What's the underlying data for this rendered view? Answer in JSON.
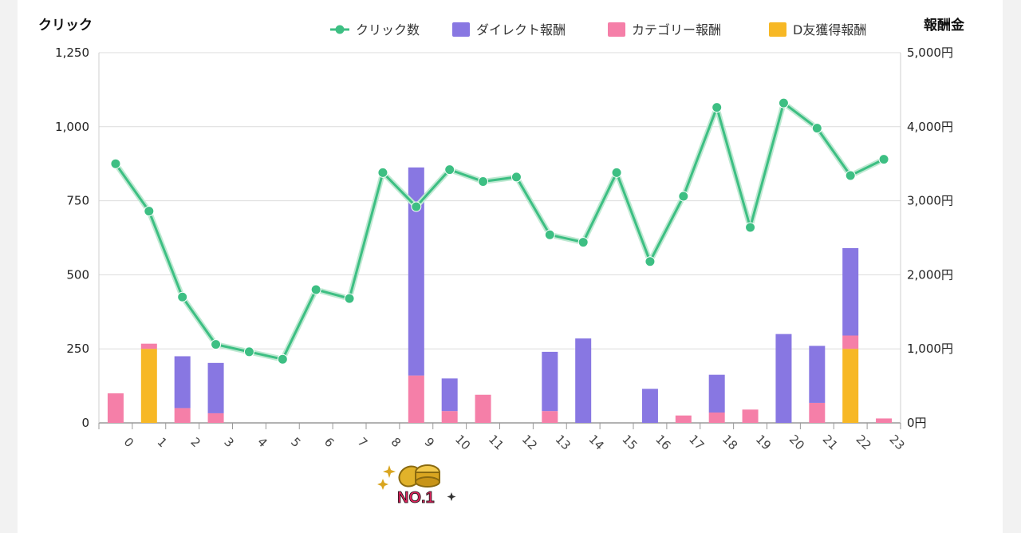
{
  "chart_data": {
    "type": "bar",
    "title": "",
    "left_axis_title": "クリック",
    "right_axis_title": "報酬金",
    "categories": [
      "0",
      "1",
      "2",
      "3",
      "4",
      "5",
      "6",
      "7",
      "8",
      "9",
      "10",
      "11",
      "12",
      "13",
      "14",
      "15",
      "16",
      "17",
      "18",
      "19",
      "20",
      "21",
      "22",
      "23"
    ],
    "left_ylim": [
      0,
      1250
    ],
    "left_ticks": [
      {
        "value": 0,
        "label": "0"
      },
      {
        "value": 250,
        "label": "250"
      },
      {
        "value": 500,
        "label": "500"
      },
      {
        "value": 750,
        "label": "750"
      },
      {
        "value": 1000,
        "label": "1,000"
      },
      {
        "value": 1250,
        "label": "1,250"
      }
    ],
    "right_ylim": [
      0,
      5000
    ],
    "right_ticks": [
      {
        "value": 0,
        "label": "0円"
      },
      {
        "value": 1000,
        "label": "1,000円"
      },
      {
        "value": 2000,
        "label": "2,000円"
      },
      {
        "value": 3000,
        "label": "3,000円"
      },
      {
        "value": 4000,
        "label": "4,000円"
      },
      {
        "value": 5000,
        "label": "5,000円"
      }
    ],
    "grid": true,
    "legend_position": "top-right",
    "line_series": {
      "name": "クリック数",
      "color": "#3dbf83",
      "axis": "left",
      "values": [
        875,
        715,
        425,
        265,
        240,
        215,
        450,
        420,
        845,
        730,
        855,
        815,
        830,
        635,
        610,
        845,
        545,
        765,
        1065,
        660,
        1080,
        995,
        835,
        890
      ]
    },
    "bar_series": [
      {
        "name": "D友獲得報酬",
        "color": "#f7b825",
        "axis": "right",
        "values": [
          0,
          1000,
          0,
          0,
          0,
          0,
          0,
          0,
          0,
          0,
          0,
          0,
          0,
          0,
          0,
          0,
          0,
          0,
          0,
          0,
          0,
          0,
          1000,
          0
        ]
      },
      {
        "name": "カテゴリー報酬",
        "color": "#f57fa8",
        "axis": "right",
        "values": [
          400,
          70,
          200,
          130,
          0,
          0,
          0,
          0,
          0,
          640,
          160,
          380,
          0,
          160,
          0,
          0,
          0,
          100,
          140,
          180,
          0,
          270,
          180,
          60
        ]
      },
      {
        "name": "ダイレクト報酬",
        "color": "#8877e2",
        "axis": "right",
        "values": [
          0,
          0,
          700,
          680,
          0,
          0,
          0,
          0,
          0,
          2810,
          440,
          0,
          0,
          800,
          1140,
          0,
          460,
          0,
          510,
          0,
          1200,
          770,
          1180,
          0
        ]
      }
    ],
    "legend_order": [
      "クリック数",
      "ダイレクト報酬",
      "カテゴリー報酬",
      "D友獲得報酬"
    ],
    "badge": {
      "category": "9",
      "text": "NO.1",
      "icon": "gold-coins-icon"
    }
  }
}
